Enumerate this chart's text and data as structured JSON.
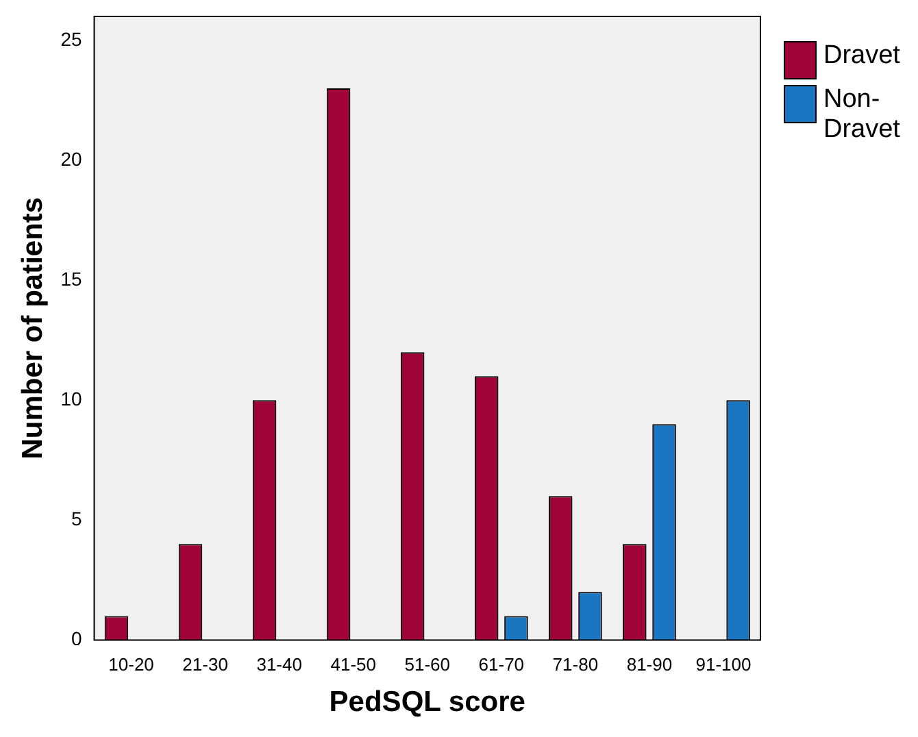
{
  "chart_data": {
    "type": "bar",
    "xlabel": "PedSQL score",
    "ylabel": "Number of patients",
    "categories": [
      "10-20",
      "21-30",
      "31-40",
      "41-50",
      "51-60",
      "61-70",
      "71-80",
      "81-90",
      "91-100"
    ],
    "series": [
      {
        "name": "Dravet",
        "color": "#a0033a",
        "values": [
          1,
          4,
          10,
          23,
          12,
          11,
          6,
          4,
          0
        ]
      },
      {
        "name": "Non-Dravet",
        "color": "#1a76c1",
        "values": [
          0,
          0,
          0,
          0,
          0,
          1,
          2,
          9,
          10
        ]
      }
    ],
    "ylim": [
      0,
      26
    ],
    "yticks": [
      0,
      5,
      10,
      15,
      20,
      25
    ],
    "grid": false,
    "legend": "right"
  }
}
